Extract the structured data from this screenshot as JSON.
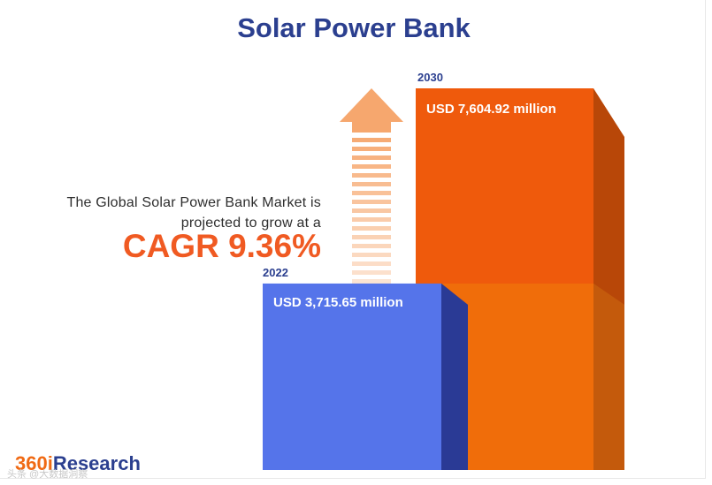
{
  "title": "Solar Power Bank",
  "description_line1": "The Global Solar Power Bank Market is",
  "description_line2": "projected to grow at a",
  "cagr_label": "CAGR 9.36%",
  "brand": {
    "prefix": "360i",
    "name": "Research"
  },
  "watermark": "头条 @大数据洞察",
  "colors": {
    "title": "#2b3f8f",
    "accent": "#f05a22",
    "bar_2022": "#5574ea",
    "bar_2030": "#ef5a0c",
    "arrow": "#f6a76e"
  },
  "chart_data": {
    "type": "bar",
    "title": "Solar Power Bank",
    "categories": [
      "2022",
      "2030"
    ],
    "values": [
      3715.65,
      7604.92
    ],
    "value_labels": [
      "USD 3,715.65 million",
      "USD 7,604.92 million"
    ],
    "unit": "USD million",
    "cagr": "9.36%",
    "grid": false
  }
}
